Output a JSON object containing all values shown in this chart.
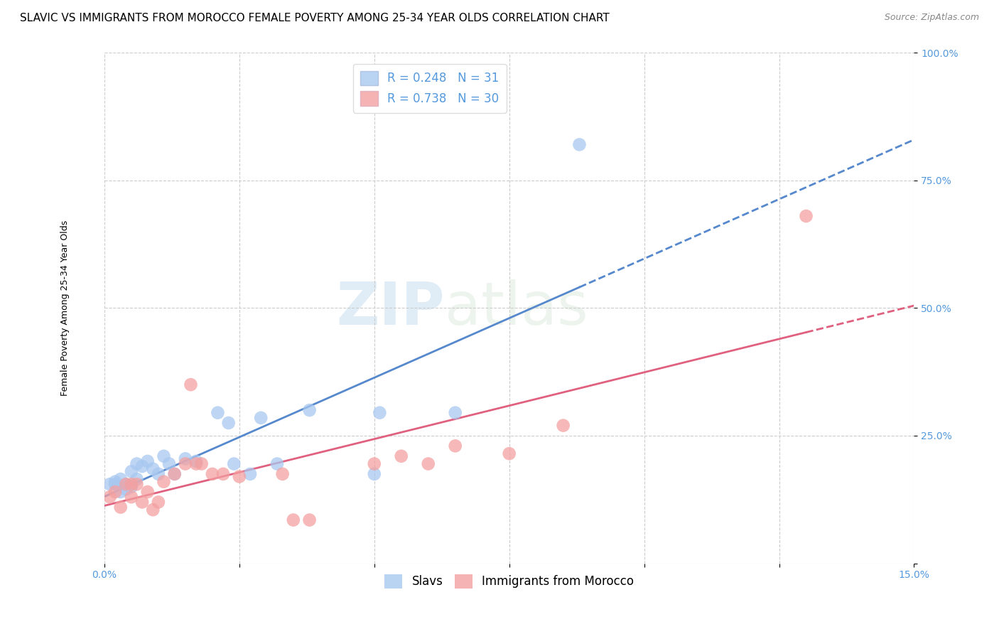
{
  "title": "SLAVIC VS IMMIGRANTS FROM MOROCCO FEMALE POVERTY AMONG 25-34 YEAR OLDS CORRELATION CHART",
  "source": "Source: ZipAtlas.com",
  "ylabel": "Female Poverty Among 25-34 Year Olds",
  "xlim": [
    0.0,
    0.15
  ],
  "ylim": [
    0.0,
    1.0
  ],
  "slavs_R": 0.248,
  "slavs_N": 31,
  "morocco_R": 0.738,
  "morocco_N": 30,
  "slavs_color": "#a8c8f0",
  "morocco_color": "#f4a0a0",
  "slavs_line_color": "#5588cc",
  "morocco_line_color": "#e06080",
  "grid_color": "#cccccc",
  "background_color": "#ffffff",
  "tick_color": "#5599dd",
  "legend_label_slavs": "Slavs",
  "legend_label_morocco": "Immigrants from Morocco",
  "slavs_x": [
    0.001,
    0.002,
    0.002,
    0.003,
    0.003,
    0.004,
    0.004,
    0.005,
    0.005,
    0.006,
    0.006,
    0.007,
    0.008,
    0.009,
    0.01,
    0.011,
    0.012,
    0.013,
    0.015,
    0.017,
    0.021,
    0.023,
    0.024,
    0.027,
    0.029,
    0.032,
    0.038,
    0.05,
    0.051,
    0.065,
    0.088
  ],
  "slavs_y": [
    0.155,
    0.155,
    0.16,
    0.14,
    0.165,
    0.145,
    0.155,
    0.15,
    0.18,
    0.165,
    0.195,
    0.19,
    0.2,
    0.185,
    0.175,
    0.21,
    0.195,
    0.175,
    0.205,
    0.2,
    0.295,
    0.275,
    0.195,
    0.175,
    0.285,
    0.195,
    0.3,
    0.175,
    0.295,
    0.295,
    0.82
  ],
  "morocco_x": [
    0.001,
    0.002,
    0.003,
    0.004,
    0.005,
    0.005,
    0.006,
    0.007,
    0.008,
    0.009,
    0.01,
    0.011,
    0.013,
    0.015,
    0.016,
    0.017,
    0.018,
    0.02,
    0.022,
    0.025,
    0.033,
    0.035,
    0.038,
    0.05,
    0.055,
    0.06,
    0.065,
    0.075,
    0.085,
    0.13
  ],
  "morocco_y": [
    0.13,
    0.14,
    0.11,
    0.155,
    0.155,
    0.13,
    0.155,
    0.12,
    0.14,
    0.105,
    0.12,
    0.16,
    0.175,
    0.195,
    0.35,
    0.195,
    0.195,
    0.175,
    0.175,
    0.17,
    0.175,
    0.085,
    0.085,
    0.195,
    0.21,
    0.195,
    0.23,
    0.215,
    0.27,
    0.68
  ],
  "watermark_zip": "ZIP",
  "watermark_atlas": "atlas",
  "title_fontsize": 11,
  "axis_label_fontsize": 9,
  "tick_fontsize": 10,
  "legend_fontsize": 12
}
